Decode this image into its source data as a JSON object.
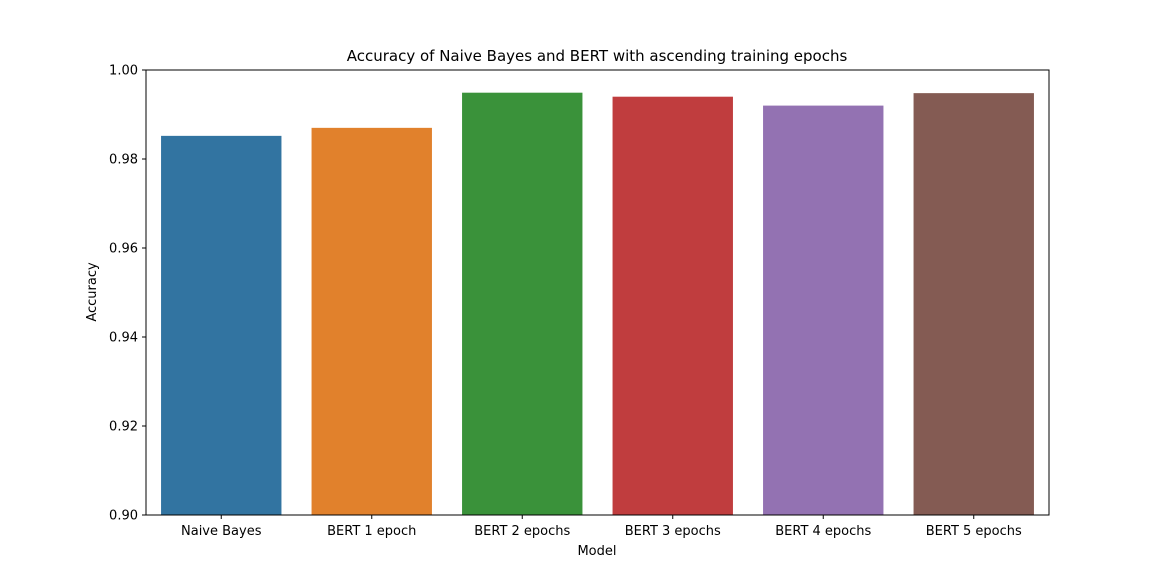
{
  "chart_data": {
    "type": "bar",
    "title": "Accuracy of Naive Bayes and BERT with ascending training epochs",
    "xlabel": "Model",
    "ylabel": "Accuracy",
    "ylim": [
      0.9,
      1.0
    ],
    "yticks": [
      "0.90",
      "0.92",
      "0.94",
      "0.96",
      "0.98",
      "1.00"
    ],
    "grid": false,
    "legend": "none",
    "categories": [
      "Naive Bayes",
      "BERT 1 epoch",
      "BERT 2 epochs",
      "BERT 3 epochs",
      "BERT 4 epochs",
      "BERT 5 epochs"
    ],
    "values": [
      0.9852,
      0.987,
      0.9949,
      0.994,
      0.992,
      0.9948
    ],
    "colors": [
      "#3274a1",
      "#e1812c",
      "#3a923a",
      "#c03d3e",
      "#9372b2",
      "#845b53"
    ]
  }
}
